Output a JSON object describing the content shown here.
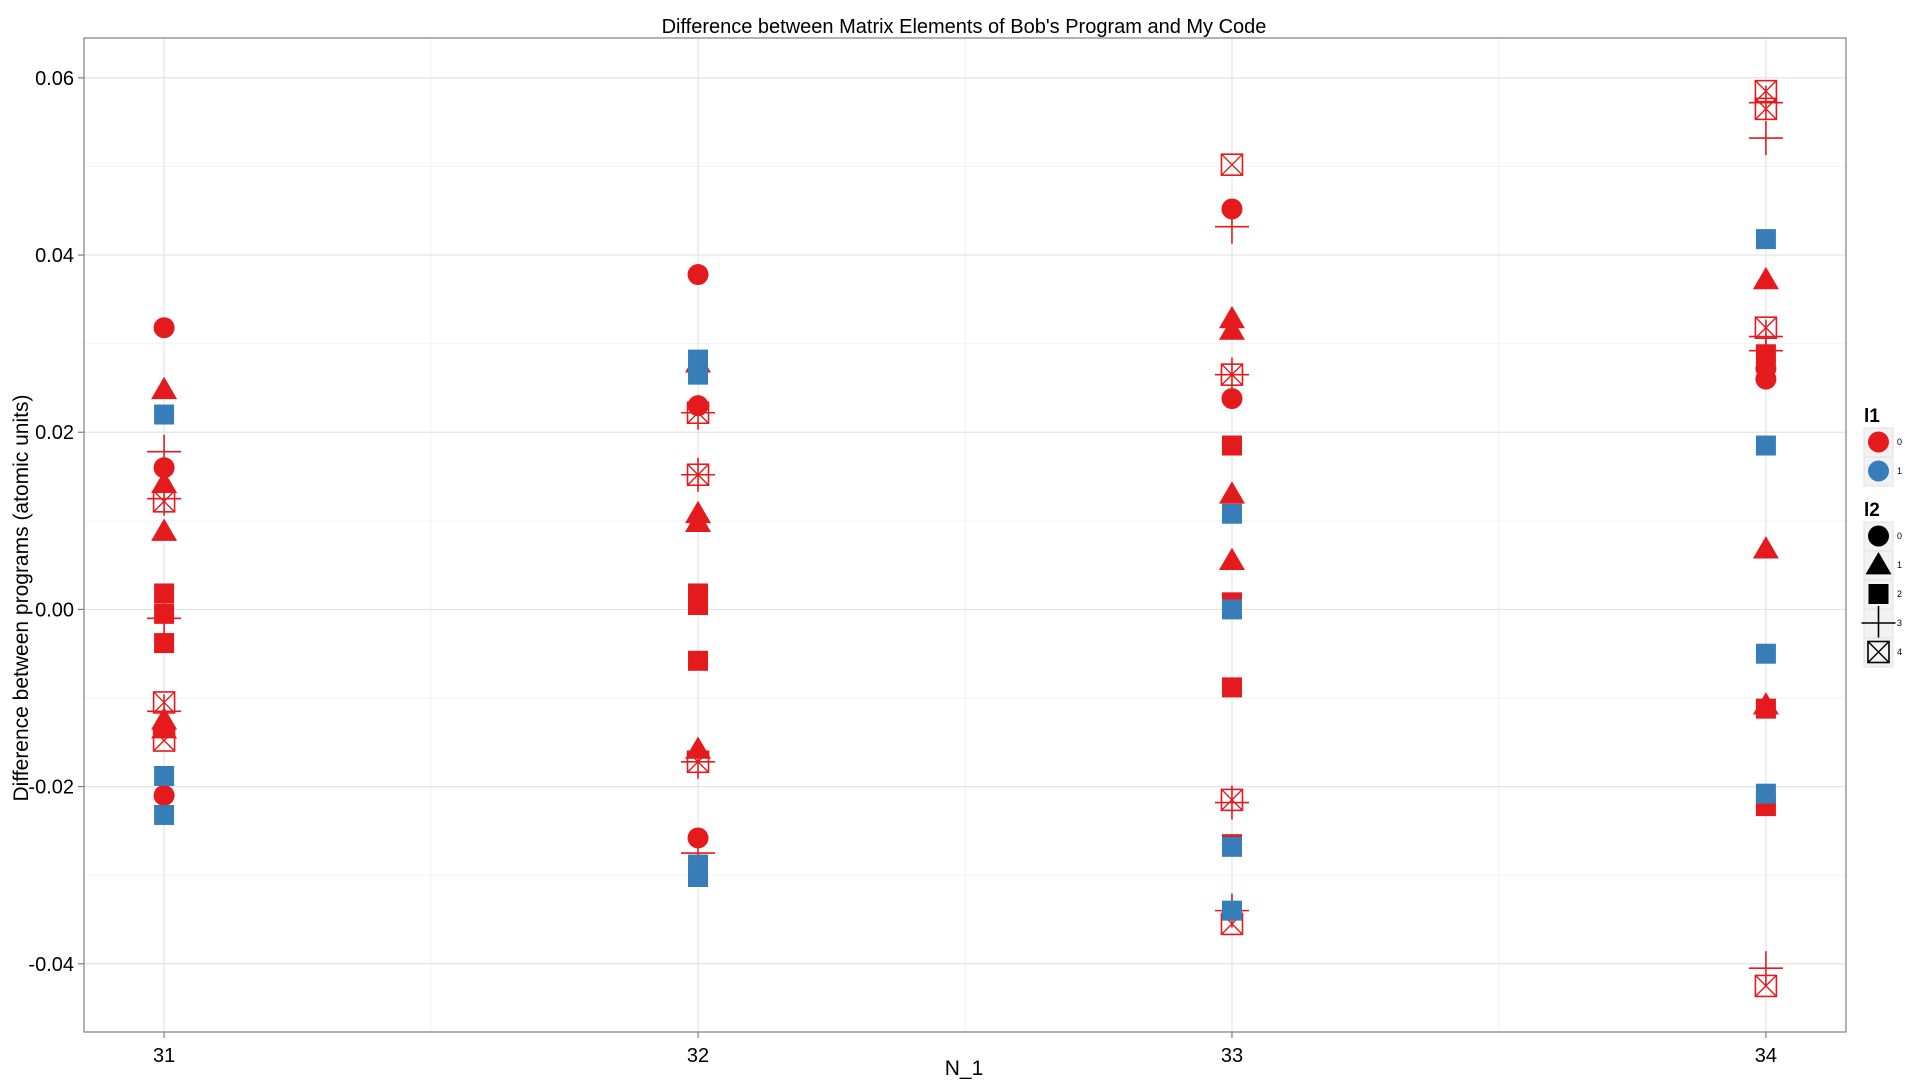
{
  "chart_data": {
    "type": "scatter",
    "title": "Difference between Matrix Elements of Bob's Program and My Code",
    "xlabel": "N_1",
    "ylabel": "Difference between programs (atomic units)",
    "x_categories": [
      "31",
      "32",
      "33",
      "34"
    ],
    "xlim": [
      30.85,
      34.15
    ],
    "ylim": [
      -0.0477,
      0.0645
    ],
    "y_ticks": [
      -0.04,
      -0.02,
      0.0,
      0.02,
      0.04,
      0.06
    ],
    "y_tick_labels": [
      "-0.04",
      "-0.02",
      "0.00",
      "0.02",
      "0.04",
      "0.06"
    ],
    "grid": true,
    "background": "#ffffff",
    "legend_placement": "right",
    "colors": {
      "0": "#e41a1c",
      "1": "#377eb8"
    },
    "legends": [
      {
        "title": "l1",
        "kind": "color",
        "entries": [
          {
            "label": "0",
            "color": "#e41a1c",
            "shape": "circle"
          },
          {
            "label": "1",
            "color": "#377eb8",
            "shape": "circle"
          }
        ]
      },
      {
        "title": "l2",
        "kind": "shape",
        "entries": [
          {
            "label": "0",
            "shape": "circle"
          },
          {
            "label": "1",
            "shape": "triangle"
          },
          {
            "label": "2",
            "shape": "square"
          },
          {
            "label": "3",
            "shape": "plus"
          },
          {
            "label": "4",
            "shape": "boxcross"
          }
        ]
      }
    ],
    "points": [
      {
        "x": 31,
        "y": 0.0318,
        "l1": 0,
        "l2": 0
      },
      {
        "x": 31,
        "y": 0.016,
        "l1": 0,
        "l2": 0
      },
      {
        "x": 31,
        "y": -0.021,
        "l1": 0,
        "l2": 0
      },
      {
        "x": 31,
        "y": 0.0248,
        "l1": 0,
        "l2": 1
      },
      {
        "x": 31,
        "y": 0.0142,
        "l1": 0,
        "l2": 1
      },
      {
        "x": 31,
        "y": 0.0088,
        "l1": 0,
        "l2": 1
      },
      {
        "x": 31,
        "y": -0.0125,
        "l1": 0,
        "l2": 1
      },
      {
        "x": 31,
        "y": -0.0135,
        "l1": 0,
        "l2": 1
      },
      {
        "x": 31,
        "y": 0.0018,
        "l1": 0,
        "l2": 2
      },
      {
        "x": 31,
        "y": -0.0005,
        "l1": 0,
        "l2": 2
      },
      {
        "x": 31,
        "y": -0.0038,
        "l1": 0,
        "l2": 2
      },
      {
        "x": 31,
        "y": 0.0178,
        "l1": 0,
        "l2": 3
      },
      {
        "x": 31,
        "y": 0.0125,
        "l1": 0,
        "l2": 3
      },
      {
        "x": 31,
        "y": -0.001,
        "l1": 0,
        "l2": 3
      },
      {
        "x": 31,
        "y": -0.0115,
        "l1": 0,
        "l2": 3
      },
      {
        "x": 31,
        "y": 0.0122,
        "l1": 0,
        "l2": 4
      },
      {
        "x": 31,
        "y": -0.0105,
        "l1": 0,
        "l2": 4
      },
      {
        "x": 31,
        "y": -0.0148,
        "l1": 0,
        "l2": 4
      },
      {
        "x": 31,
        "y": 0.022,
        "l1": 1,
        "l2": 2
      },
      {
        "x": 31,
        "y": -0.0188,
        "l1": 1,
        "l2": 2
      },
      {
        "x": 31,
        "y": -0.0232,
        "l1": 1,
        "l2": 2
      },
      {
        "x": 32,
        "y": 0.0378,
        "l1": 0,
        "l2": 0
      },
      {
        "x": 32,
        "y": 0.023,
        "l1": 0,
        "l2": 0
      },
      {
        "x": 32,
        "y": -0.0258,
        "l1": 0,
        "l2": 0
      },
      {
        "x": 32,
        "y": 0.0278,
        "l1": 0,
        "l2": 1
      },
      {
        "x": 32,
        "y": 0.0108,
        "l1": 0,
        "l2": 1
      },
      {
        "x": 32,
        "y": 0.0098,
        "l1": 0,
        "l2": 1
      },
      {
        "x": 32,
        "y": -0.0158,
        "l1": 0,
        "l2": 1
      },
      {
        "x": 32,
        "y": 0.0018,
        "l1": 0,
        "l2": 2
      },
      {
        "x": 32,
        "y": 0.0005,
        "l1": 0,
        "l2": 2
      },
      {
        "x": 32,
        "y": -0.0058,
        "l1": 0,
        "l2": 2
      },
      {
        "x": 32,
        "y": -0.0302,
        "l1": 0,
        "l2": 2
      },
      {
        "x": 32,
        "y": 0.0222,
        "l1": 0,
        "l2": 3
      },
      {
        "x": 32,
        "y": 0.0152,
        "l1": 0,
        "l2": 3
      },
      {
        "x": 32,
        "y": -0.0172,
        "l1": 0,
        "l2": 3
      },
      {
        "x": 32,
        "y": -0.0275,
        "l1": 0,
        "l2": 3
      },
      {
        "x": 32,
        "y": 0.0222,
        "l1": 0,
        "l2": 4
      },
      {
        "x": 32,
        "y": 0.0152,
        "l1": 0,
        "l2": 4
      },
      {
        "x": 32,
        "y": -0.0172,
        "l1": 0,
        "l2": 4
      },
      {
        "x": 32,
        "y": 0.0282,
        "l1": 1,
        "l2": 2
      },
      {
        "x": 32,
        "y": 0.0265,
        "l1": 1,
        "l2": 2
      },
      {
        "x": 32,
        "y": -0.0288,
        "l1": 1,
        "l2": 2
      },
      {
        "x": 32,
        "y": -0.0302,
        "l1": 1,
        "l2": 2
      },
      {
        "x": 33,
        "y": 0.0452,
        "l1": 0,
        "l2": 0
      },
      {
        "x": 33,
        "y": 0.0238,
        "l1": 0,
        "l2": 0
      },
      {
        "x": 33,
        "y": 0.0328,
        "l1": 0,
        "l2": 1
      },
      {
        "x": 33,
        "y": 0.0315,
        "l1": 0,
        "l2": 1
      },
      {
        "x": 33,
        "y": 0.013,
        "l1": 0,
        "l2": 1
      },
      {
        "x": 33,
        "y": 0.0055,
        "l1": 0,
        "l2": 1
      },
      {
        "x": 33,
        "y": 0.0185,
        "l1": 0,
        "l2": 2
      },
      {
        "x": 33,
        "y": 0.0008,
        "l1": 0,
        "l2": 2
      },
      {
        "x": 33,
        "y": -0.0088,
        "l1": 0,
        "l2": 2
      },
      {
        "x": 33,
        "y": -0.0265,
        "l1": 0,
        "l2": 2
      },
      {
        "x": 33,
        "y": 0.0432,
        "l1": 0,
        "l2": 3
      },
      {
        "x": 33,
        "y": 0.0265,
        "l1": 0,
        "l2": 3
      },
      {
        "x": 33,
        "y": -0.0218,
        "l1": 0,
        "l2": 3
      },
      {
        "x": 33,
        "y": -0.034,
        "l1": 0,
        "l2": 3
      },
      {
        "x": 33,
        "y": 0.0502,
        "l1": 0,
        "l2": 4
      },
      {
        "x": 33,
        "y": 0.0265,
        "l1": 0,
        "l2": 4
      },
      {
        "x": 33,
        "y": -0.0215,
        "l1": 0,
        "l2": 4
      },
      {
        "x": 33,
        "y": -0.0355,
        "l1": 0,
        "l2": 4
      },
      {
        "x": 33,
        "y": 0.0108,
        "l1": 1,
        "l2": 2
      },
      {
        "x": 33,
        "y": 0.0,
        "l1": 1,
        "l2": 2
      },
      {
        "x": 33,
        "y": -0.0268,
        "l1": 1,
        "l2": 2
      },
      {
        "x": 33,
        "y": -0.034,
        "l1": 1,
        "l2": 2
      },
      {
        "x": 34,
        "y": 0.0272,
        "l1": 0,
        "l2": 0
      },
      {
        "x": 34,
        "y": 0.026,
        "l1": 0,
        "l2": 0
      },
      {
        "x": 34,
        "y": 0.0372,
        "l1": 0,
        "l2": 1
      },
      {
        "x": 34,
        "y": 0.0068,
        "l1": 0,
        "l2": 1
      },
      {
        "x": 34,
        "y": -0.0108,
        "l1": 0,
        "l2": 1
      },
      {
        "x": 34,
        "y": 0.0288,
        "l1": 0,
        "l2": 2
      },
      {
        "x": 34,
        "y": -0.0112,
        "l1": 0,
        "l2": 2
      },
      {
        "x": 34,
        "y": -0.0222,
        "l1": 0,
        "l2": 2
      },
      {
        "x": 34,
        "y": 0.0572,
        "l1": 0,
        "l2": 3
      },
      {
        "x": 34,
        "y": 0.0532,
        "l1": 0,
        "l2": 3
      },
      {
        "x": 34,
        "y": 0.0308,
        "l1": 0,
        "l2": 3
      },
      {
        "x": 34,
        "y": 0.0292,
        "l1": 0,
        "l2": 3
      },
      {
        "x": 34,
        "y": -0.0405,
        "l1": 0,
        "l2": 3
      },
      {
        "x": 34,
        "y": 0.0585,
        "l1": 0,
        "l2": 4
      },
      {
        "x": 34,
        "y": 0.0565,
        "l1": 0,
        "l2": 4
      },
      {
        "x": 34,
        "y": 0.0318,
        "l1": 0,
        "l2": 4
      },
      {
        "x": 34,
        "y": -0.0425,
        "l1": 0,
        "l2": 4
      },
      {
        "x": 34,
        "y": 0.0418,
        "l1": 1,
        "l2": 2
      },
      {
        "x": 34,
        "y": 0.0185,
        "l1": 1,
        "l2": 2
      },
      {
        "x": 34,
        "y": -0.005,
        "l1": 1,
        "l2": 2
      },
      {
        "x": 34,
        "y": -0.0208,
        "l1": 1,
        "l2": 2
      }
    ]
  }
}
